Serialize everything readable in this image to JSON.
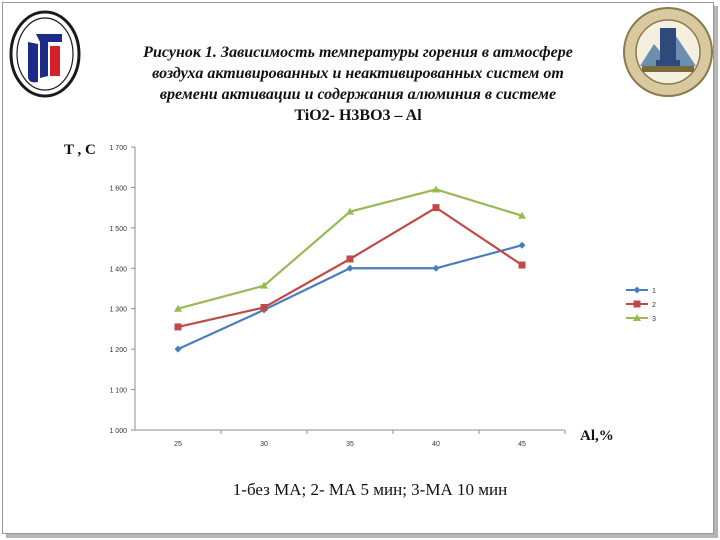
{
  "title": {
    "line1": "Рисунок 1. Зависимость температуры  горения  в атмосфере",
    "line2": "воздуха активированных и неактивированных систем от",
    "line3": "времени активации и содержания алюминия в системе",
    "line4": "TiO2- H3BO3 – Al"
  },
  "caption": "1-без МА; 2- МА 5 мин; 3-МА 10 мин",
  "colors": {
    "s1": "#4a7ebb",
    "s2": "#be4b48",
    "s3": "#98b954"
  },
  "chart_data": {
    "type": "line",
    "ylabel": "T , C",
    "xlabel": "Al,%",
    "categories": [
      "25",
      "30",
      "35",
      "40",
      "45"
    ],
    "y_ticks": [
      "1 000",
      "1 100",
      "1 200",
      "1 300",
      "1 400",
      "1 500",
      "1 600",
      "1 700"
    ],
    "ylim": [
      1000,
      1700
    ],
    "grid": false,
    "legend": "right",
    "series": [
      {
        "name": "1",
        "values": [
          1200,
          1297,
          1400,
          1400,
          1457
        ]
      },
      {
        "name": "2",
        "values": [
          1255,
          1303,
          1423,
          1550,
          1408
        ]
      },
      {
        "name": "3",
        "values": [
          1300,
          1357,
          1540,
          1595,
          1530
        ]
      }
    ]
  }
}
